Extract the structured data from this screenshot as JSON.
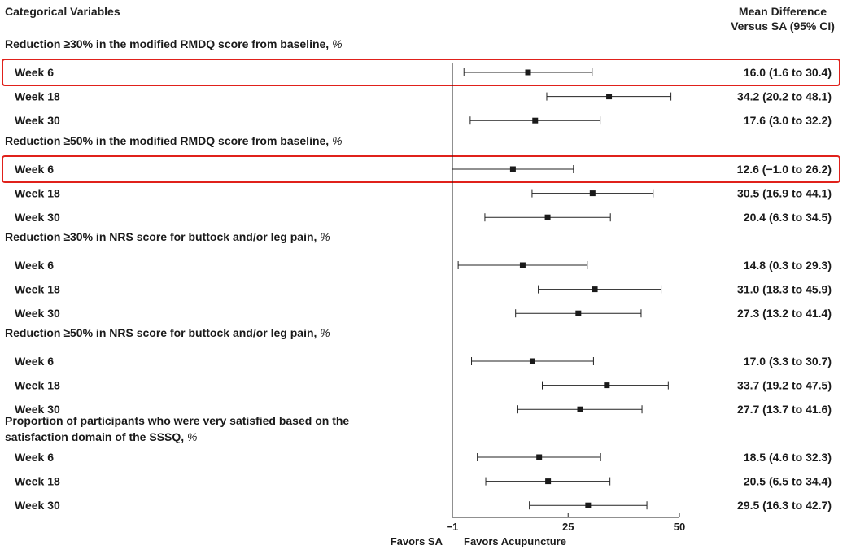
{
  "header": {
    "left": "Categorical Variables",
    "right_line1": "Mean Difference",
    "right_line2": "Versus SA (95% CI)"
  },
  "chart_data": {
    "type": "forest",
    "xlim": [
      -1,
      50
    ],
    "x_ticks": [
      -1,
      25,
      50
    ],
    "x_tick_labels": [
      "−1",
      "25",
      "50"
    ],
    "reference_line": -1,
    "favors_left": "Favors SA",
    "favors_right": "Favors Acupuncture",
    "highlight_color": "#e0211b",
    "groups": [
      {
        "label_lines": [
          "Reduction ≥30% in the modified RMDQ score from baseline, %"
        ],
        "rows": [
          {
            "label": "Week 6",
            "estimate": 16.0,
            "lower": 1.6,
            "upper": 30.4,
            "text": "16.0 (1.6 to 30.4)",
            "highlight": true
          },
          {
            "label": "Week 18",
            "estimate": 34.2,
            "lower": 20.2,
            "upper": 48.1,
            "text": "34.2 (20.2 to 48.1)",
            "highlight": false
          },
          {
            "label": "Week 30",
            "estimate": 17.6,
            "lower": 3.0,
            "upper": 32.2,
            "text": "17.6 (3.0 to 32.2)",
            "highlight": false
          }
        ]
      },
      {
        "label_lines": [
          "Reduction ≥50% in the modified RMDQ score from baseline, %"
        ],
        "rows": [
          {
            "label": "Week 6",
            "estimate": 12.6,
            "lower": -1.0,
            "upper": 26.2,
            "text": "12.6 (−1.0 to 26.2)",
            "highlight": true
          },
          {
            "label": "Week 18",
            "estimate": 30.5,
            "lower": 16.9,
            "upper": 44.1,
            "text": "30.5 (16.9 to 44.1)",
            "highlight": false
          },
          {
            "label": "Week 30",
            "estimate": 20.4,
            "lower": 6.3,
            "upper": 34.5,
            "text": "20.4 (6.3 to 34.5)",
            "highlight": false
          }
        ]
      },
      {
        "label_lines": [
          "Reduction ≥30% in NRS score for buttock and/or leg pain, %"
        ],
        "rows": [
          {
            "label": "Week 6",
            "estimate": 14.8,
            "lower": 0.3,
            "upper": 29.3,
            "text": "14.8 (0.3 to 29.3)",
            "highlight": false
          },
          {
            "label": "Week 18",
            "estimate": 31.0,
            "lower": 18.3,
            "upper": 45.9,
            "text": "31.0 (18.3 to 45.9)",
            "highlight": false
          },
          {
            "label": "Week 30",
            "estimate": 27.3,
            "lower": 13.2,
            "upper": 41.4,
            "text": "27.3 (13.2 to 41.4)",
            "highlight": false
          }
        ]
      },
      {
        "label_lines": [
          "Reduction ≥50% in NRS score for buttock and/or leg pain, %"
        ],
        "rows": [
          {
            "label": "Week 6",
            "estimate": 17.0,
            "lower": 3.3,
            "upper": 30.7,
            "text": "17.0 (3.3 to 30.7)",
            "highlight": false
          },
          {
            "label": "Week 18",
            "estimate": 33.7,
            "lower": 19.2,
            "upper": 47.5,
            "text": "33.7 (19.2 to 47.5)",
            "highlight": false
          },
          {
            "label": "Week 30",
            "estimate": 27.7,
            "lower": 13.7,
            "upper": 41.6,
            "text": "27.7 (13.7 to 41.6)",
            "highlight": false
          }
        ]
      },
      {
        "label_lines": [
          "Proportion of participants who were very satisfied based on the",
          "satisfaction domain of the SSSQ, %"
        ],
        "rows": [
          {
            "label": "Week 6",
            "estimate": 18.5,
            "lower": 4.6,
            "upper": 32.3,
            "text": "18.5 (4.6 to 32.3)",
            "highlight": false
          },
          {
            "label": "Week 18",
            "estimate": 20.5,
            "lower": 6.5,
            "upper": 34.4,
            "text": "20.5 (6.5 to 34.4)",
            "highlight": false
          },
          {
            "label": "Week 30",
            "estimate": 29.5,
            "lower": 16.3,
            "upper": 42.7,
            "text": "29.5 (16.3 to 42.7)",
            "highlight": false
          }
        ]
      }
    ]
  }
}
